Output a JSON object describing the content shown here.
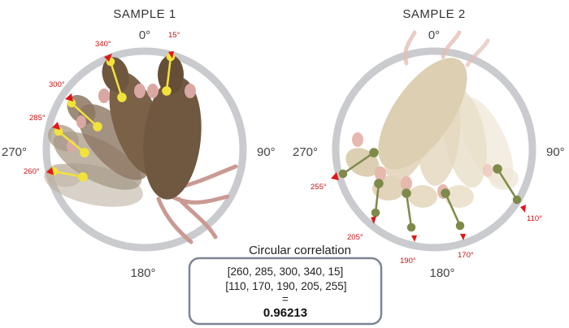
{
  "sample1": {
    "title": "SAMPLE 1",
    "deg_top": "0°",
    "deg_right": "90°",
    "deg_bottom": "180°",
    "deg_left": "270°",
    "angles": [
      "340°",
      "15°",
      "300°",
      "285°",
      "260°"
    ]
  },
  "sample2": {
    "title": "SAMPLE 2",
    "deg_top": "0°",
    "deg_right": "90°",
    "deg_bottom": "180°",
    "deg_left": "270°",
    "angles": [
      "255°",
      "205°",
      "190°",
      "170°",
      "110°"
    ]
  },
  "correlation": {
    "title": "Circular correlation",
    "line1": "[260, 285, 300, 340, 15]",
    "line2": "[110, 170, 190, 205, 255]",
    "equals": "=",
    "value": "0.96213"
  },
  "colors": {
    "ring": "#c9cbce",
    "mouse1": "#7a6148",
    "mouse2": "#e8dcc3",
    "marker_yellow": "#f2e33a",
    "marker_green": "#7d8a4a",
    "arrow": "#e01818",
    "box_border": "#7d8594"
  }
}
